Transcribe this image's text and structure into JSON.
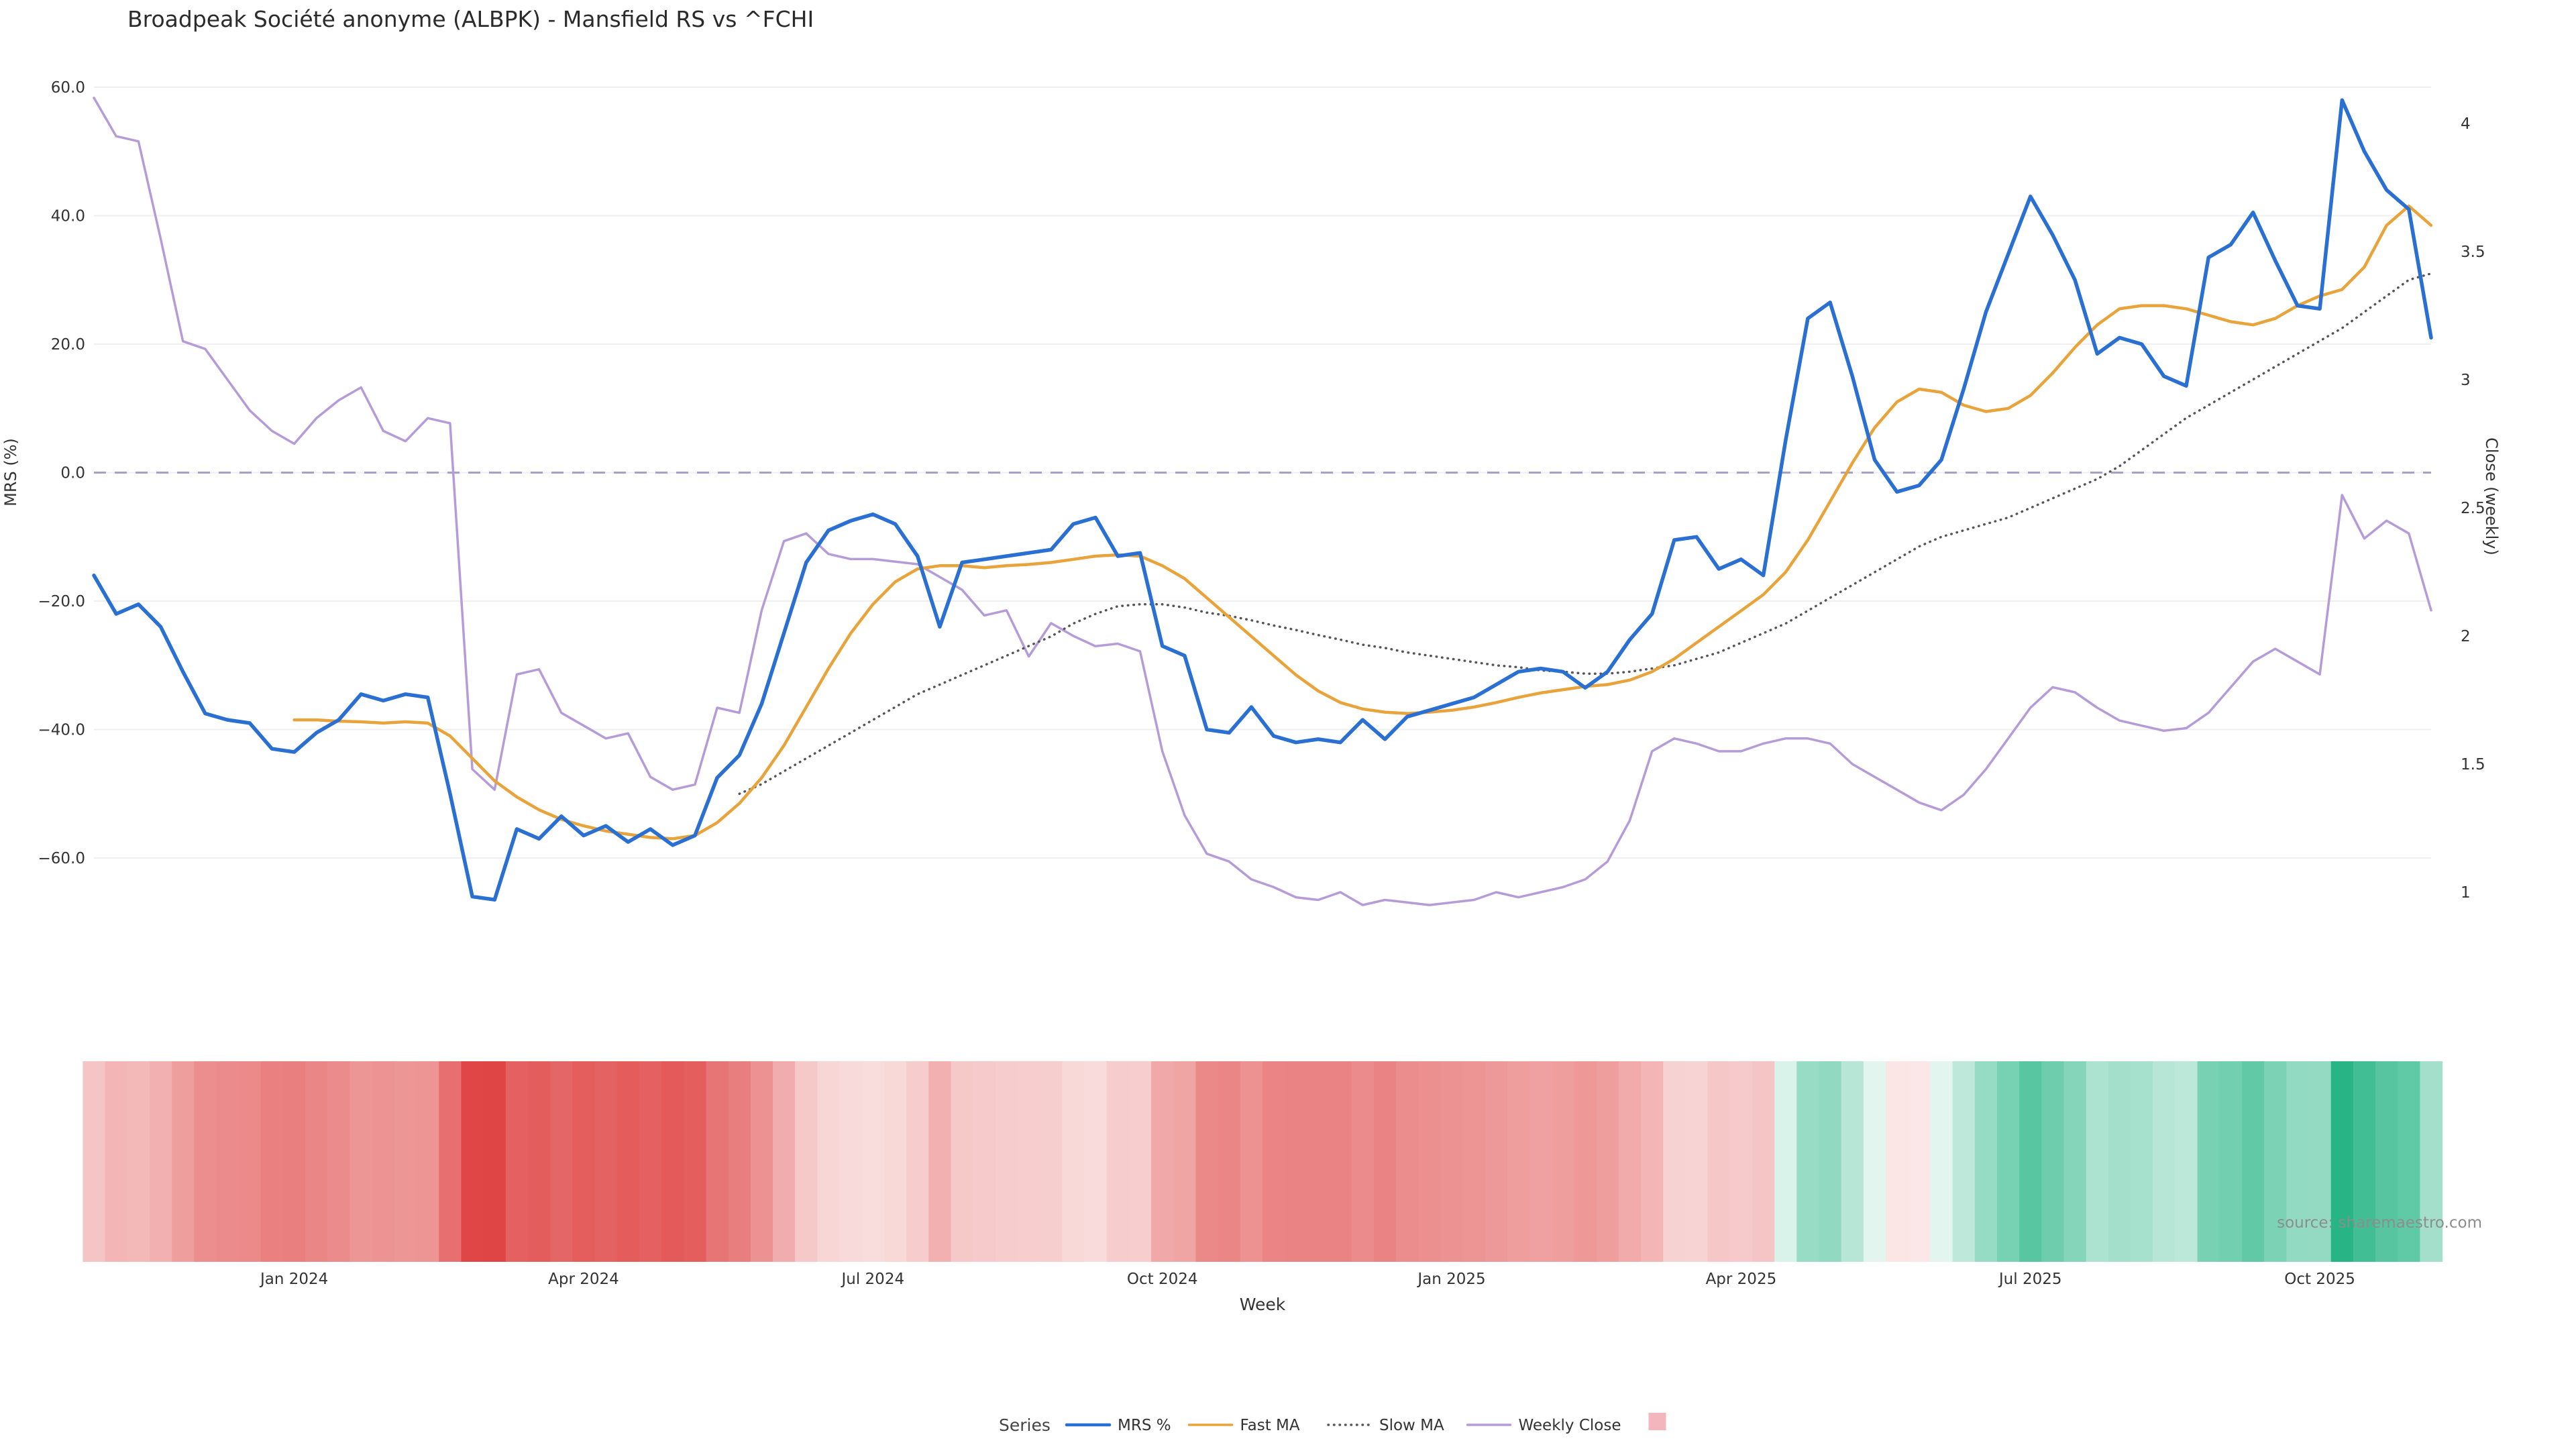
{
  "title": "Broadpeak Société anonyme (ALBPK) - Mansfield RS vs ^FCHI",
  "source": "source: sharemaestro.com",
  "legend": {
    "title": "Series",
    "items": [
      {
        "label": "MRS %",
        "type": "line"
      },
      {
        "label": "Fast MA",
        "type": "line"
      },
      {
        "label": "Slow MA",
        "type": "line"
      },
      {
        "label": "Weekly Close",
        "type": "line"
      },
      {
        "label": "",
        "type": "square",
        "color": "#f4b6bd"
      }
    ]
  },
  "chart_data": {
    "type": "line",
    "title": "Broadpeak Société anonyme (ALBPK) - Mansfield RS vs ^FCHI",
    "xlabel": "Week",
    "ylabel_left": "MRS (%)",
    "ylabel_right": "Close (weekly)",
    "ylim_left": [
      -70,
      62
    ],
    "ylim_right": [
      0.85,
      4.15
    ],
    "grid": "faint-horizontal",
    "legend_position": "bottom",
    "x_ticks": [
      {
        "index": 9,
        "label": "Jan 2024"
      },
      {
        "index": 22,
        "label": "Apr 2024"
      },
      {
        "index": 35,
        "label": "Jul 2024"
      },
      {
        "index": 48,
        "label": "Oct 2024"
      },
      {
        "index": 61,
        "label": "Jan 2025"
      },
      {
        "index": 74,
        "label": "Apr 2025"
      },
      {
        "index": 87,
        "label": "Jul 2025"
      },
      {
        "index": 100,
        "label": "Oct 2025"
      }
    ],
    "y_left_ticks": [
      {
        "value": 60,
        "label": "60.0"
      },
      {
        "value": 40,
        "label": "40.0"
      },
      {
        "value": 20,
        "label": "20.0"
      },
      {
        "value": 0,
        "label": "0.0"
      },
      {
        "value": -20,
        "label": "−20.0"
      },
      {
        "value": -40,
        "label": "−40.0"
      },
      {
        "value": -60,
        "label": "−60.0"
      }
    ],
    "y_right_ticks": [
      {
        "value": 4,
        "label": "4"
      },
      {
        "value": 3.5,
        "label": "3.5"
      },
      {
        "value": 3,
        "label": "3"
      },
      {
        "value": 2.5,
        "label": "2.5"
      },
      {
        "value": 2,
        "label": "2"
      },
      {
        "value": 1.5,
        "label": "1.5"
      },
      {
        "value": 1,
        "label": "1"
      }
    ],
    "zero_line": {
      "value": 0,
      "color": "#a79fce",
      "style": "dashed"
    },
    "series": [
      {
        "name": "MRS %",
        "color": "#2a6fd2",
        "width": 5.5,
        "axis": "left",
        "start_index": 0,
        "values": [
          -16,
          -22,
          -20.5,
          -24,
          -31,
          -37.5,
          -38.5,
          -39,
          -43,
          -43.5,
          -40.5,
          -38.5,
          -34.5,
          -35.5,
          -34.5,
          -35,
          -50,
          -66,
          -66.5,
          -55.5,
          -57,
          -53.5,
          -56.5,
          -55,
          -57.5,
          -55.5,
          -58,
          -56.5,
          -47.5,
          -44,
          -36,
          -25,
          -14,
          -9,
          -7.5,
          -6.5,
          -8,
          -13,
          -24,
          -14,
          -13.5,
          -13,
          -12.5,
          -12,
          -8,
          -7,
          -13,
          -12.5,
          -27,
          -28.5,
          -40,
          -40.5,
          -36.5,
          -41,
          -42,
          -41.5,
          -42,
          -38.5,
          -41.5,
          -38,
          -37,
          -36,
          -35,
          -33,
          -31,
          -30.5,
          -31,
          -33.5,
          -31,
          -26,
          -22,
          -10.5,
          -10,
          -15,
          -13.5,
          -16,
          5,
          24,
          26.5,
          15,
          2,
          -3,
          -2,
          2,
          13,
          25,
          34,
          43,
          37,
          30,
          18.5,
          21,
          20,
          15,
          13.5,
          33.5,
          35.5,
          40.5,
          33,
          26,
          25.5,
          58,
          50,
          44,
          41,
          21
        ]
      },
      {
        "name": "Fast MA",
        "color": "#e8a33a",
        "width": 4.5,
        "axis": "left",
        "start_index": 9,
        "values": [
          -38.5,
          -38.5,
          -38.7,
          -38.8,
          -39,
          -38.8,
          -39,
          -41,
          -44.5,
          -48,
          -50.5,
          -52.5,
          -54,
          -55,
          -55.8,
          -56.3,
          -56.8,
          -57,
          -56.5,
          -54.5,
          -51.5,
          -47.5,
          -42.5,
          -36.5,
          -30.5,
          -25,
          -20.5,
          -17,
          -15,
          -14.5,
          -14.5,
          -14.8,
          -14.5,
          -14.3,
          -14,
          -13.5,
          -13,
          -12.8,
          -13,
          -14.5,
          -16.5,
          -19.5,
          -22.5,
          -25.5,
          -28.5,
          -31.5,
          -34,
          -35.8,
          -36.8,
          -37.3,
          -37.5,
          -37.3,
          -37,
          -36.5,
          -35.8,
          -35,
          -34.3,
          -33.8,
          -33.3,
          -33,
          -32.3,
          -31,
          -29,
          -26.5,
          -24,
          -21.5,
          -19,
          -15.5,
          -10.5,
          -4.5,
          1.5,
          7,
          11,
          13,
          12.5,
          10.5,
          9.5,
          10,
          12,
          15.5,
          19.5,
          23,
          25.5,
          26,
          26,
          25.5,
          24.5,
          23.5,
          23,
          24,
          26,
          27.5,
          28.5,
          32,
          38.5,
          41.5,
          38.5
        ]
      },
      {
        "name": "Slow MA",
        "color": "#555555",
        "width": 3.5,
        "axis": "left",
        "style": "dotted",
        "start_index": 29,
        "values": [
          -50,
          -48.5,
          -46.5,
          -44.5,
          -42.5,
          -40.5,
          -38.5,
          -36.5,
          -34.5,
          -33,
          -31.5,
          -30,
          -28.5,
          -27,
          -25.5,
          -23.5,
          -22,
          -20.8,
          -20.5,
          -20.5,
          -21,
          -21.8,
          -22.3,
          -23,
          -23.8,
          -24.5,
          -25.3,
          -26,
          -26.8,
          -27.3,
          -28,
          -28.5,
          -29,
          -29.5,
          -30,
          -30.3,
          -30.8,
          -31,
          -31.3,
          -31.3,
          -31,
          -30.5,
          -30,
          -29,
          -28,
          -26.5,
          -25,
          -23.5,
          -21.5,
          -19.5,
          -17.5,
          -15.5,
          -13.5,
          -11.5,
          -10,
          -9,
          -8,
          -7,
          -5.5,
          -4,
          -2.5,
          -1,
          1,
          3.5,
          6,
          8.5,
          10.5,
          12.5,
          14.5,
          16.5,
          18.5,
          20.5,
          22.5,
          25,
          27.5,
          30,
          31
        ]
      },
      {
        "name": "Weekly Close",
        "color": "#b59cd9",
        "width": 3.5,
        "axis": "right",
        "start_index": 0,
        "values": [
          4.1,
          3.95,
          3.93,
          3.55,
          3.15,
          3.12,
          3.0,
          2.88,
          2.8,
          2.75,
          2.85,
          2.92,
          2.97,
          2.8,
          2.76,
          2.85,
          2.83,
          1.48,
          1.4,
          1.85,
          1.87,
          1.7,
          1.65,
          1.6,
          1.62,
          1.45,
          1.4,
          1.42,
          1.72,
          1.7,
          2.1,
          2.37,
          2.4,
          2.32,
          2.3,
          2.3,
          2.29,
          2.28,
          2.23,
          2.18,
          2.08,
          2.1,
          1.92,
          2.05,
          2.0,
          1.96,
          1.97,
          1.94,
          1.55,
          1.3,
          1.15,
          1.12,
          1.05,
          1.02,
          0.98,
          0.97,
          1.0,
          0.95,
          0.97,
          0.96,
          0.95,
          0.96,
          0.97,
          1.0,
          0.98,
          1.0,
          1.02,
          1.05,
          1.12,
          1.28,
          1.55,
          1.6,
          1.58,
          1.55,
          1.55,
          1.58,
          1.6,
          1.6,
          1.58,
          1.5,
          1.45,
          1.4,
          1.35,
          1.32,
          1.38,
          1.48,
          1.6,
          1.72,
          1.8,
          1.78,
          1.72,
          1.67,
          1.65,
          1.63,
          1.64,
          1.7,
          1.8,
          1.9,
          1.95,
          1.9,
          1.85,
          2.55,
          2.38,
          2.45,
          2.4,
          2.1
        ]
      }
    ],
    "heatmap": {
      "source_series": "MRS %",
      "negative_color": "#e04545",
      "positive_color": "#27b586",
      "min": -66.5,
      "max": 58
    }
  }
}
